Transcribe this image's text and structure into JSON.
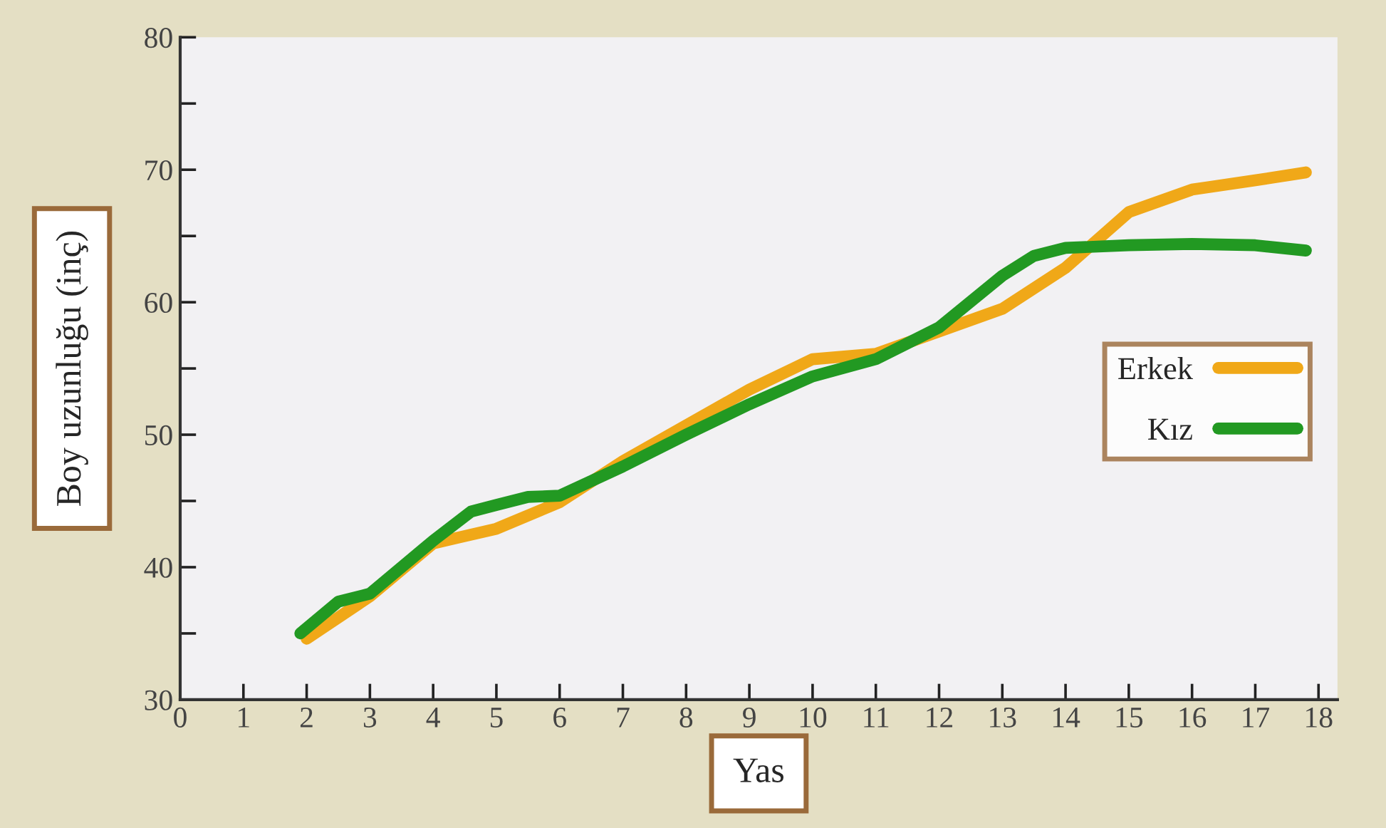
{
  "chart_data": {
    "type": "line",
    "xlabel": "Yas",
    "ylabel": "Boy uzunluğu (inç)",
    "x": [
      2,
      3,
      4,
      5,
      6,
      7,
      8,
      9,
      10,
      11,
      12,
      13,
      14,
      15,
      16,
      17,
      17.8
    ],
    "series": [
      {
        "name": "Erkek",
        "color": "#f0a818",
        "values": [
          34.6,
          37.8,
          41.8,
          42.9,
          44.9,
          48.0,
          50.7,
          53.4,
          55.7,
          56.1,
          57.8,
          59.5,
          62.6,
          66.8,
          68.5,
          69.2,
          69.8
        ]
      },
      {
        "name": "Kız",
        "color": "#229922",
        "x": [
          1.9,
          2.5,
          3,
          4,
          4.6,
          5,
          5.5,
          6,
          7,
          8,
          9,
          10,
          11,
          12,
          13,
          13.5,
          14,
          15,
          16,
          17,
          17.8
        ],
        "values": [
          35.0,
          37.4,
          38.0,
          42.0,
          44.2,
          44.7,
          45.3,
          45.4,
          47.6,
          50.0,
          52.3,
          54.4,
          55.7,
          58.1,
          62.0,
          63.5,
          64.1,
          64.3,
          64.4,
          64.3,
          63.9
        ]
      }
    ],
    "xlim": [
      0,
      18.3
    ],
    "xticks": [
      0,
      1,
      2,
      3,
      4,
      5,
      6,
      7,
      8,
      9,
      10,
      11,
      12,
      13,
      14,
      15,
      16,
      17,
      18
    ],
    "ylim": [
      30,
      80
    ],
    "yticks": [
      30,
      {
        "value": 35,
        "label": null
      },
      40,
      {
        "value": 45,
        "label": null
      },
      50,
      {
        "value": 55,
        "label": null
      },
      60,
      {
        "value": 65,
        "label": null
      },
      70,
      {
        "value": 75,
        "label": null
      },
      80
    ],
    "grid": false,
    "legend": "right",
    "marker": "none",
    "line_style": "solid"
  }
}
